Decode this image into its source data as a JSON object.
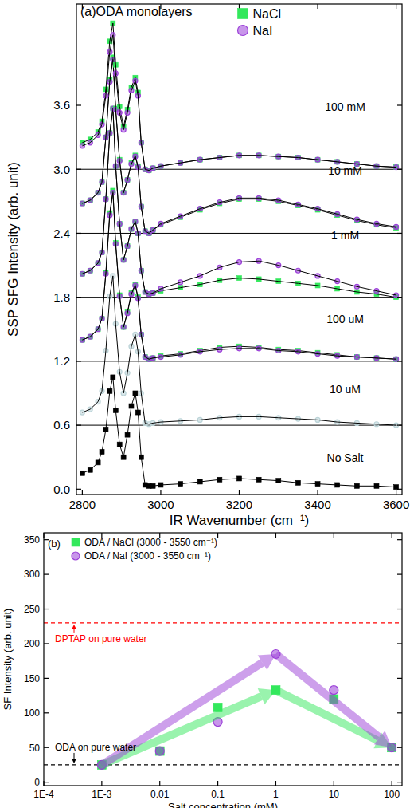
{
  "chart_data": [
    {
      "type": "line",
      "title": "(a)ODA monolayers",
      "x_label": "IR Wavenumber (cm⁻¹)",
      "y_label": "SSP SFG Intensity (arb. unit)",
      "x": [
        2800,
        2820,
        2840,
        2850,
        2860,
        2870,
        2878,
        2885,
        2895,
        2905,
        2915,
        2925,
        2935,
        2942,
        2950,
        2960,
        2970,
        2980,
        3000,
        3050,
        3100,
        3150,
        3200,
        3250,
        3300,
        3350,
        3400,
        3450,
        3500,
        3550,
        3600
      ],
      "xlim": [
        2785,
        3615
      ],
      "ylim": [
        -0.05,
        4.55
      ],
      "xticks": [
        2800,
        3000,
        3200,
        3400,
        3600
      ],
      "yticks": [
        {
          "value": 0,
          "label": "0.0"
        },
        0.6,
        1.2,
        1.8,
        2.4,
        {
          "value": 3,
          "label": "3.0"
        },
        3.6
      ],
      "grid": false,
      "legend": "top-right",
      "baselines": [
        0.6,
        1.2,
        1.8,
        2.4,
        3.0
      ],
      "annotations": [
        {
          "text": "100 mM",
          "x": 3470,
          "y": 3.55
        },
        {
          "text": "10 mM",
          "x": 3470,
          "y": 2.95
        },
        {
          "text": "1 mM",
          "x": 3470,
          "y": 2.34
        },
        {
          "text": "100 uM",
          "x": 3470,
          "y": 1.56
        },
        {
          "text": "10 uM",
          "x": 3470,
          "y": 0.9
        },
        {
          "text": "No Salt",
          "x": 3470,
          "y": 0.26
        }
      ],
      "series": [
        {
          "color": "#000000",
          "marker": "square",
          "values": [
            0.15,
            0.18,
            0.25,
            0.35,
            0.56,
            0.92,
            1.05,
            0.74,
            0.42,
            0.3,
            0.51,
            0.78,
            0.9,
            0.72,
            0.3,
            0.04,
            0.03,
            0.03,
            0.04,
            0.05,
            0.07,
            0.09,
            0.1,
            0.09,
            0.08,
            0.06,
            0.05,
            0.04,
            0.03,
            0.03,
            0.02
          ]
        },
        {
          "color": "#bcd4d8",
          "marker": "circle",
          "values": [
            0.72,
            0.75,
            0.82,
            0.92,
            1.3,
            1.81,
            2.0,
            1.55,
            1.1,
            0.9,
            1.09,
            1.34,
            1.45,
            1.29,
            0.9,
            0.62,
            0.61,
            0.62,
            0.63,
            0.64,
            0.65,
            0.67,
            0.68,
            0.68,
            0.67,
            0.66,
            0.65,
            0.63,
            0.62,
            0.61,
            0.6
          ]
        },
        {
          "name": "NaCl",
          "color": "#33e85c",
          "marker": "square",
          "values": [
            1.4,
            1.43,
            1.5,
            1.6,
            2.03,
            2.59,
            2.8,
            2.31,
            1.82,
            1.52,
            1.66,
            1.84,
            1.92,
            1.8,
            1.45,
            1.24,
            1.22,
            1.23,
            1.25,
            1.27,
            1.3,
            1.33,
            1.34,
            1.33,
            1.31,
            1.3,
            1.28,
            1.26,
            1.24,
            1.23,
            1.22
          ]
        },
        {
          "name": "NaI",
          "color": "#9b40d8",
          "marker": "circle",
          "values": [
            1.4,
            1.43,
            1.5,
            1.6,
            2.02,
            2.57,
            2.78,
            2.3,
            1.81,
            1.52,
            1.65,
            1.83,
            1.91,
            1.79,
            1.45,
            1.24,
            1.22,
            1.23,
            1.24,
            1.26,
            1.29,
            1.31,
            1.32,
            1.32,
            1.3,
            1.29,
            1.27,
            1.25,
            1.24,
            1.23,
            1.22
          ]
        },
        {
          "name": "NaCl",
          "color": "#33e85c",
          "marker": "square",
          "values": [
            2.02,
            2.05,
            2.12,
            2.22,
            2.72,
            3.34,
            3.57,
            3.03,
            2.49,
            2.15,
            2.28,
            2.44,
            2.51,
            2.4,
            2.05,
            1.85,
            1.83,
            1.84,
            1.86,
            1.89,
            1.92,
            1.96,
            1.98,
            1.97,
            1.95,
            1.93,
            1.91,
            1.88,
            1.85,
            1.83,
            1.8
          ]
        },
        {
          "name": "NaI",
          "color": "#9b40d8",
          "marker": "circle",
          "values": [
            2.02,
            2.05,
            2.12,
            2.22,
            2.72,
            3.34,
            3.57,
            3.03,
            2.49,
            2.15,
            2.28,
            2.44,
            2.51,
            2.4,
            2.05,
            1.85,
            1.83,
            1.84,
            1.88,
            1.94,
            2.0,
            2.08,
            2.13,
            2.14,
            2.1,
            2.05,
            2.0,
            1.95,
            1.9,
            1.86,
            1.82
          ]
        },
        {
          "name": "NaCl",
          "color": "#33e85c",
          "marker": "square",
          "values": [
            2.68,
            2.71,
            2.78,
            2.88,
            3.3,
            3.84,
            4.05,
            3.57,
            3.09,
            2.78,
            2.9,
            3.06,
            3.13,
            3.03,
            2.65,
            2.42,
            2.4,
            2.43,
            2.48,
            2.55,
            2.62,
            2.68,
            2.72,
            2.72,
            2.7,
            2.66,
            2.62,
            2.57,
            2.52,
            2.48,
            2.45
          ]
        },
        {
          "name": "NaI",
          "color": "#9b40d8",
          "marker": "circle",
          "values": [
            2.68,
            2.71,
            2.78,
            2.88,
            3.3,
            3.82,
            4.03,
            3.56,
            3.08,
            2.78,
            2.9,
            3.05,
            3.12,
            3.02,
            2.65,
            2.42,
            2.4,
            2.43,
            2.49,
            2.56,
            2.63,
            2.69,
            2.73,
            2.73,
            2.71,
            2.67,
            2.63,
            2.58,
            2.53,
            2.49,
            2.46
          ]
        },
        {
          "name": "NaCl",
          "color": "#33e85c",
          "marker": "square",
          "values": [
            3.25,
            3.28,
            3.35,
            3.45,
            3.75,
            4.2,
            4.37,
            3.98,
            3.59,
            3.4,
            3.56,
            3.77,
            3.86,
            3.72,
            3.25,
            3.0,
            2.99,
            3.01,
            3.03,
            3.06,
            3.09,
            3.11,
            3.13,
            3.13,
            3.12,
            3.11,
            3.09,
            3.07,
            3.05,
            3.03,
            3.02
          ]
        },
        {
          "name": "NaI",
          "color": "#9b40d8",
          "marker": "circle",
          "values": [
            3.22,
            3.25,
            3.32,
            3.42,
            3.69,
            4.1,
            4.26,
            3.9,
            3.53,
            3.37,
            3.53,
            3.74,
            3.83,
            3.69,
            3.25,
            3.0,
            2.99,
            3.01,
            3.03,
            3.06,
            3.09,
            3.11,
            3.13,
            3.13,
            3.12,
            3.11,
            3.09,
            3.07,
            3.05,
            3.03,
            3.02
          ]
        }
      ]
    },
    {
      "type": "scatter",
      "title": "(b)",
      "x_label": "Salt concentration (mM)",
      "y_label": "SF Intensity (arb. unit)",
      "log": "x",
      "x": [
        0.001,
        0.01,
        0.1,
        1,
        10,
        100
      ],
      "xlim": [
        0.0001,
        150
      ],
      "ylim": [
        -5,
        360
      ],
      "xticks": [
        {
          "value": 0.0001,
          "label": "1E-4"
        },
        {
          "value": 0.001,
          "label": "1E-3"
        },
        0.01,
        0.1,
        1,
        10,
        100
      ],
      "yticks": [
        0,
        50,
        100,
        150,
        200,
        250,
        300,
        350
      ],
      "grid": false,
      "legend": "top-left",
      "reference_lines": [
        {
          "value": 230,
          "label": "DPTAP on pure water",
          "color": "#ff0000"
        },
        {
          "value": 25,
          "label": "ODA on pure water",
          "color": "#000000"
        }
      ],
      "series": [
        {
          "name": "ODA / NaCl (3000 - 3550 cm⁻¹)",
          "color": "#33e85c",
          "marker": "square",
          "line_style": "arrow",
          "values": [
            25,
            45,
            108,
            133,
            120,
            50
          ]
        },
        {
          "name": "ODA / NaI (3000 - 3550 cm⁻¹)",
          "color": "#9b40d8",
          "marker": "circle",
          "line_style": "arrow",
          "values": [
            25,
            45,
            87,
            185,
            133,
            50
          ]
        }
      ]
    }
  ]
}
